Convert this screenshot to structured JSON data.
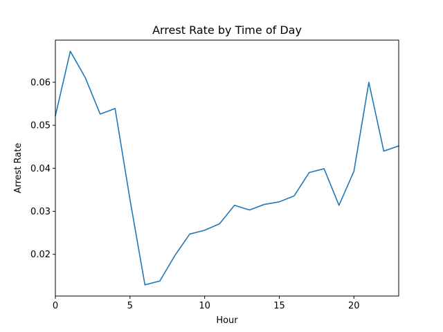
{
  "chart_data": {
    "type": "line",
    "title": "Arrest Rate by Time of Day",
    "xlabel": "Hour",
    "ylabel": "Arrest Rate",
    "xlim": [
      0,
      23
    ],
    "ylim": [
      0.0103,
      0.0698
    ],
    "xticks": [
      0,
      5,
      10,
      15,
      20
    ],
    "yticks": [
      0.02,
      0.03,
      0.04,
      0.05,
      0.06
    ],
    "ytick_labels": [
      "0.02",
      "0.03",
      "0.04",
      "0.05",
      "0.06"
    ],
    "grid": false,
    "series": [
      {
        "color": "#1f77b4",
        "x": [
          0,
          1,
          2,
          3,
          4,
          5,
          6,
          7,
          8,
          9,
          10,
          11,
          12,
          13,
          14,
          15,
          16,
          17,
          18,
          19,
          20,
          21,
          22,
          23
        ],
        "y": [
          0.0522,
          0.0672,
          0.0611,
          0.0526,
          0.0539,
          0.0327,
          0.0129,
          0.0138,
          0.0197,
          0.0247,
          0.0256,
          0.0271,
          0.0314,
          0.0303,
          0.0316,
          0.0322,
          0.0336,
          0.039,
          0.0399,
          0.0314,
          0.0393,
          0.06,
          0.044,
          0.0452
        ]
      }
    ]
  }
}
